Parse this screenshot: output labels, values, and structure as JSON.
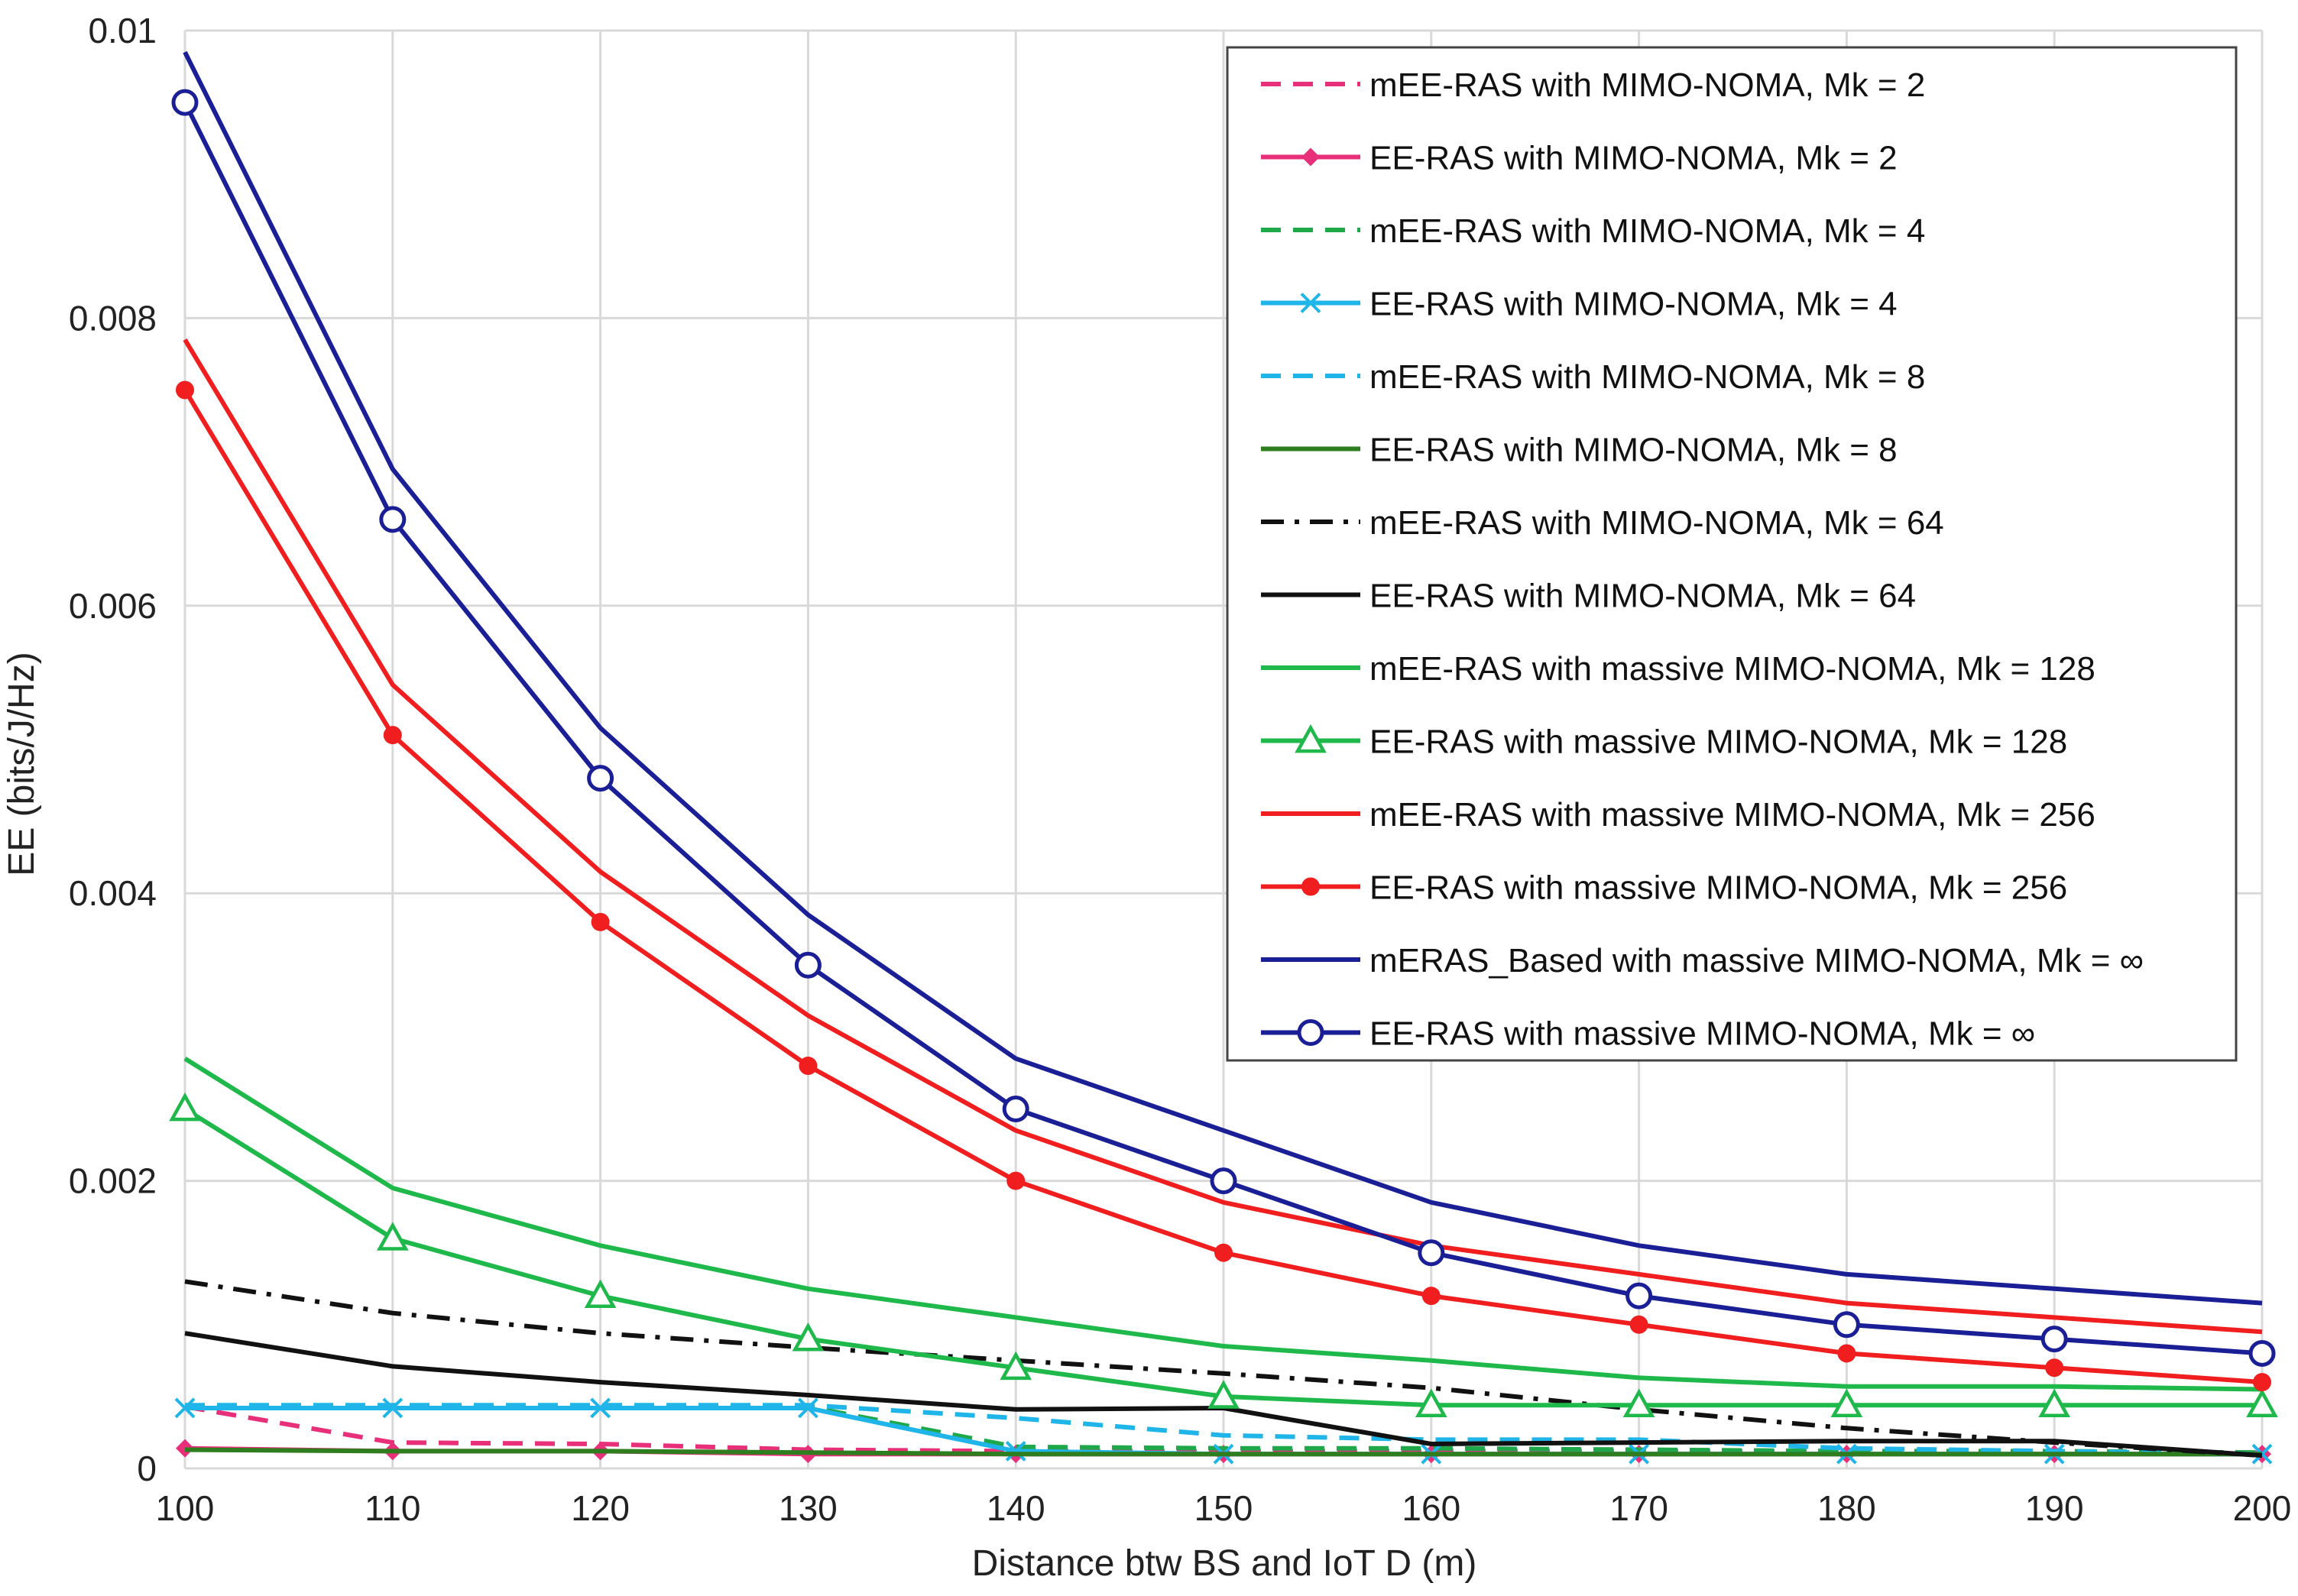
{
  "chart_data": {
    "type": "line",
    "title": "",
    "xlabel": "Distance btw BS and IoT D (m)",
    "ylabel": "EE (bits/J/Hz)",
    "x": [
      100,
      110,
      120,
      130,
      140,
      150,
      160,
      170,
      180,
      190,
      200
    ],
    "xlim": [
      100,
      200
    ],
    "ylim": [
      0,
      0.01
    ],
    "x_ticks": [
      "100",
      "110",
      "120",
      "130",
      "140",
      "150",
      "160",
      "170",
      "180",
      "190",
      "200"
    ],
    "y_ticks": [
      "0",
      "0.002",
      "0.004",
      "0.006",
      "0.008",
      "0.01"
    ],
    "grid": true,
    "legend_position": "top-right",
    "series": [
      {
        "name": "mEE-RAS with MIMO-NOMA, Mk = 2",
        "color": "#e8307a",
        "dash": "dashed",
        "marker": "none",
        "values": [
          0.00043,
          0.00018,
          0.00017,
          0.00013,
          0.00012,
          0.00012,
          0.00012,
          0.00012,
          0.00012,
          0.00011,
          0.00011
        ]
      },
      {
        "name": "EE-RAS with MIMO-NOMA, Mk = 2",
        "color": "#e8307a",
        "dash": "solid",
        "marker": "diamond",
        "values": [
          0.00014,
          0.00012,
          0.00012,
          0.0001,
          0.0001,
          0.0001,
          0.0001,
          0.0001,
          0.0001,
          0.0001,
          0.0001
        ]
      },
      {
        "name": "mEE-RAS with MIMO-NOMA, Mk = 4",
        "color": "#1fa84a",
        "dash": "dashed",
        "marker": "none",
        "values": [
          0.00043,
          0.00043,
          0.00043,
          0.00043,
          0.00015,
          0.00014,
          0.00014,
          0.00013,
          0.00012,
          0.00012,
          0.00011
        ]
      },
      {
        "name": "EE-RAS with MIMO-NOMA, Mk = 4",
        "color": "#1fb5e8",
        "dash": "solid",
        "marker": "x",
        "values": [
          0.00042,
          0.00042,
          0.00042,
          0.00042,
          0.00012,
          0.0001,
          0.0001,
          0.0001,
          0.0001,
          0.0001,
          0.0001
        ]
      },
      {
        "name": "mEE-RAS with MIMO-NOMA, Mk = 8",
        "color": "#1fb5e8",
        "dash": "dashed",
        "marker": "none",
        "values": [
          0.00044,
          0.00044,
          0.00044,
          0.00044,
          0.00035,
          0.00023,
          0.0002,
          0.0002,
          0.00014,
          0.00012,
          0.0001
        ]
      },
      {
        "name": "EE-RAS with MIMO-NOMA, Mk = 8",
        "color": "#2e7d1e",
        "dash": "solid",
        "marker": "none",
        "values": [
          0.00013,
          0.00012,
          0.00012,
          0.00011,
          0.0001,
          0.0001,
          0.0001,
          0.0001,
          0.0001,
          0.0001,
          0.0001
        ]
      },
      {
        "name": "mEE-RAS with MIMO-NOMA, Mk = 64",
        "color": "#111111",
        "dash": "dashdot",
        "marker": "none",
        "values": [
          0.0013,
          0.00108,
          0.00094,
          0.00084,
          0.00075,
          0.00066,
          0.00056,
          0.00041,
          0.00028,
          0.00018,
          9e-05
        ]
      },
      {
        "name": "EE-RAS with MIMO-NOMA, Mk = 64",
        "color": "#111111",
        "dash": "solid",
        "marker": "none",
        "values": [
          0.00094,
          0.00071,
          0.0006,
          0.00051,
          0.00041,
          0.00042,
          0.00017,
          0.00018,
          0.00019,
          0.00019,
          9e-05
        ]
      },
      {
        "name": "mEE-RAS with massive MIMO-NOMA, Mk = 128",
        "color": "#1fb84a",
        "dash": "solid",
        "marker": "none",
        "values": [
          0.00285,
          0.00195,
          0.00155,
          0.00125,
          0.00105,
          0.00085,
          0.00075,
          0.00063,
          0.00057,
          0.00057,
          0.00055
        ]
      },
      {
        "name": "EE-RAS with massive MIMO-NOMA, Mk = 128",
        "color": "#1fb84a",
        "dash": "solid",
        "marker": "triangle",
        "values": [
          0.0025,
          0.0016,
          0.0012,
          0.0009,
          0.0007,
          0.0005,
          0.00044,
          0.00044,
          0.00044,
          0.00044,
          0.00044
        ]
      },
      {
        "name": "mEE-RAS with massive MIMO-NOMA, Mk = 256",
        "color": "#f01e1e",
        "dash": "solid",
        "marker": "none",
        "values": [
          0.00785,
          0.00545,
          0.00415,
          0.00315,
          0.00235,
          0.00185,
          0.00155,
          0.00135,
          0.00115,
          0.00105,
          0.00095
        ]
      },
      {
        "name": "EE-RAS with massive MIMO-NOMA, Mk = 256",
        "color": "#f01e1e",
        "dash": "solid",
        "marker": "dot",
        "values": [
          0.0075,
          0.0051,
          0.0038,
          0.0028,
          0.002,
          0.0015,
          0.0012,
          0.001,
          0.0008,
          0.0007,
          0.0006
        ]
      },
      {
        "name": "mERAS_Based with massive MIMO-NOMA, Mk = ∞",
        "color": "#1a1f96",
        "dash": "solid",
        "marker": "none",
        "values": [
          0.00985,
          0.00695,
          0.00515,
          0.00385,
          0.00285,
          0.00235,
          0.00185,
          0.00155,
          0.00135,
          0.00125,
          0.00115
        ]
      },
      {
        "name": "EE-RAS with massive MIMO-NOMA, Mk = ∞",
        "color": "#1a1f96",
        "dash": "solid",
        "marker": "circle",
        "values": [
          0.0095,
          0.0066,
          0.0048,
          0.0035,
          0.0025,
          0.002,
          0.0015,
          0.0012,
          0.001,
          0.0009,
          0.0008
        ]
      }
    ]
  }
}
